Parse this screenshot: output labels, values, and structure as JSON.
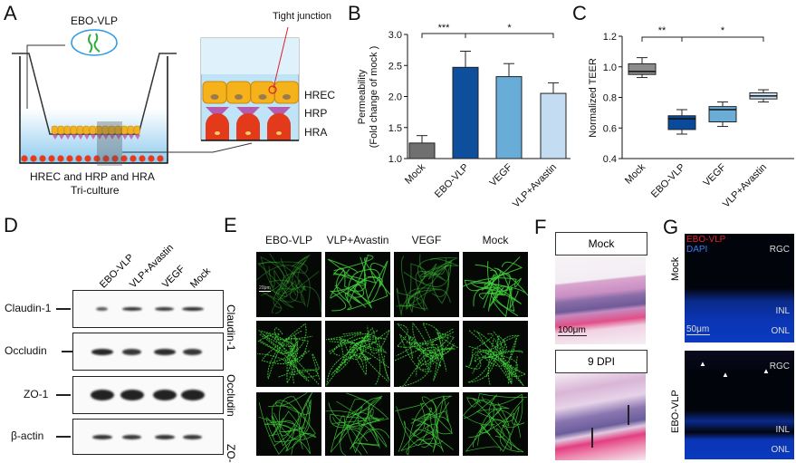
{
  "panels": {
    "a": {
      "letter": "A",
      "virus_label": "EBO-VLP",
      "caption_line1": "HREC and HRP and HRA",
      "caption_line2": "Tri-culture",
      "tight_junction": "Tight junction",
      "layers": [
        "HREC",
        "HRP",
        "HRA"
      ]
    },
    "b": {
      "letter": "B"
    },
    "c": {
      "letter": "C"
    },
    "d": {
      "letter": "D",
      "lanes": [
        "EBO-VLP",
        "VLP+Avastin",
        "VEGF",
        "Mock"
      ],
      "proteins": [
        "Claudin-1",
        "Occludin",
        "ZO-1",
        "β-actin"
      ]
    },
    "e": {
      "letter": "E",
      "columns": [
        "EBO-VLP",
        "VLP+Avastin",
        "VEGF",
        "Mock"
      ],
      "rows": [
        "Claudin-1",
        "Occludin",
        "ZO-1"
      ],
      "scale_bar": "20μm"
    },
    "f": {
      "letter": "F",
      "conditions": [
        "Mock",
        "9 DPI"
      ],
      "scale_bar": "100μm"
    },
    "g": {
      "letter": "G",
      "rows": [
        "Mock",
        "EBO-VLP"
      ],
      "legend_red": "EBO-VLP",
      "legend_blue": "DAPI",
      "layers": [
        "RGC",
        "INL",
        "ONL"
      ],
      "scale_bar": "50μm"
    }
  },
  "colors": {
    "mock": "#707070",
    "ebo_vlp": "#0d4f9c",
    "vegf": "#67add8",
    "vlp_avastin": "#c4dcf2",
    "mock_box": "#8c8c8c",
    "ebo_box": "#0a4a9a",
    "vegf_box": "#6aaed8",
    "vlp_box": "#c9def2"
  },
  "chart_data": [
    {
      "type": "bar",
      "panel": "B",
      "categories": [
        "Mock",
        "EBO-VLP",
        "VEGF",
        "VLP+Avastin"
      ],
      "values": [
        1.25,
        2.47,
        2.32,
        2.05
      ],
      "error_upper": [
        1.37,
        2.73,
        2.53,
        2.22
      ],
      "ylabel_line1": "Permeability",
      "ylabel_line2": "(Fold change of mock )",
      "ylim": [
        1.0,
        3.0
      ],
      "yticks": [
        "1.0",
        "1.5",
        "2.0",
        "2.5",
        "3.0"
      ],
      "significance": [
        {
          "from": "Mock",
          "to": "EBO-VLP",
          "label": "***"
        },
        {
          "from": "EBO-VLP",
          "to": "VLP+Avastin",
          "label": "*"
        }
      ]
    },
    {
      "type": "box",
      "panel": "C",
      "categories": [
        "Mock",
        "EBO-VLP",
        "VEGF",
        "VLP+Avastin"
      ],
      "boxes": [
        {
          "min": 0.93,
          "q1": 0.95,
          "median": 0.97,
          "q3": 1.02,
          "max": 1.06
        },
        {
          "min": 0.56,
          "q1": 0.59,
          "median": 0.66,
          "q3": 0.68,
          "max": 0.72
        },
        {
          "min": 0.61,
          "q1": 0.64,
          "median": 0.72,
          "q3": 0.74,
          "max": 0.77
        },
        {
          "min": 0.77,
          "q1": 0.79,
          "median": 0.81,
          "q3": 0.83,
          "max": 0.85
        }
      ],
      "ylabel": "Normalized TEER",
      "ylim": [
        0.4,
        1.2
      ],
      "yticks": [
        "0.4",
        "0.6",
        "0.8",
        "1.0",
        "1.2"
      ],
      "significance": [
        {
          "from": "Mock",
          "to": "EBO-VLP",
          "label": "**"
        },
        {
          "from": "EBO-VLP",
          "to": "VLP+Avastin",
          "label": "*"
        }
      ]
    }
  ]
}
